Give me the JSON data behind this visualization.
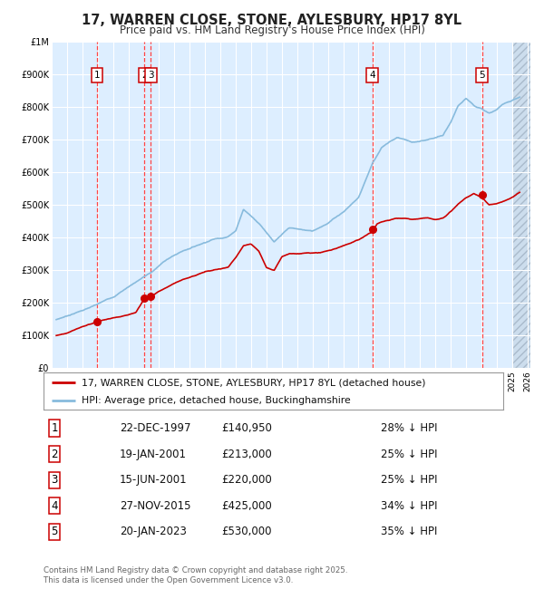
{
  "title": "17, WARREN CLOSE, STONE, AYLESBURY, HP17 8YL",
  "subtitle": "Price paid vs. HM Land Registry's House Price Index (HPI)",
  "plot_bg_color": "#ddeeff",
  "grid_color": "#ffffff",
  "ylim": [
    0,
    1000000
  ],
  "xlim_start": 1995.3,
  "xlim_end": 2026.2,
  "yticks": [
    0,
    100000,
    200000,
    300000,
    400000,
    500000,
    600000,
    700000,
    800000,
    900000,
    1000000
  ],
  "ytick_labels": [
    "£0",
    "£100K",
    "£200K",
    "£300K",
    "£400K",
    "£500K",
    "£600K",
    "£700K",
    "£800K",
    "£900K",
    "£1M"
  ],
  "xticks": [
    1995,
    1996,
    1997,
    1998,
    1999,
    2000,
    2001,
    2002,
    2003,
    2004,
    2005,
    2006,
    2007,
    2008,
    2009,
    2010,
    2011,
    2012,
    2013,
    2014,
    2015,
    2016,
    2017,
    2018,
    2019,
    2020,
    2021,
    2022,
    2023,
    2024,
    2025,
    2026
  ],
  "transactions": [
    {
      "id": 1,
      "date": "22-DEC-1997",
      "year": 1997.97,
      "price": 140950,
      "pct": "28%",
      "direction": "↓"
    },
    {
      "id": 2,
      "date": "19-JAN-2001",
      "year": 2001.05,
      "price": 213000,
      "pct": "25%",
      "direction": "↓"
    },
    {
      "id": 3,
      "date": "15-JUN-2001",
      "year": 2001.46,
      "price": 220000,
      "pct": "25%",
      "direction": "↓"
    },
    {
      "id": 4,
      "date": "27-NOV-2015",
      "year": 2015.9,
      "price": 425000,
      "pct": "34%",
      "direction": "↓"
    },
    {
      "id": 5,
      "date": "20-JAN-2023",
      "year": 2023.05,
      "price": 530000,
      "pct": "35%",
      "direction": "↓"
    }
  ],
  "vline_color": "#ff4444",
  "marker_color": "#cc0000",
  "red_line_color": "#cc0000",
  "blue_line_color": "#88bbdd",
  "legend_label_red": "17, WARREN CLOSE, STONE, AYLESBURY, HP17 8YL (detached house)",
  "legend_label_blue": "HPI: Average price, detached house, Buckinghamshire",
  "footer": "Contains HM Land Registry data © Crown copyright and database right 2025.\nThis data is licensed under the Open Government Licence v3.0.",
  "table_rows": [
    [
      1,
      "22-DEC-1997",
      "£140,950",
      "28% ↓ HPI"
    ],
    [
      2,
      "19-JAN-2001",
      "£213,000",
      "25% ↓ HPI"
    ],
    [
      3,
      "15-JUN-2001",
      "£220,000",
      "25% ↓ HPI"
    ],
    [
      4,
      "27-NOV-2015",
      "£425,000",
      "34% ↓ HPI"
    ],
    [
      5,
      "20-JAN-2023",
      "£530,000",
      "35% ↓ HPI"
    ]
  ],
  "hpi_anchors_x": [
    1995.3,
    1996.0,
    1997.0,
    1997.97,
    1999.0,
    2000.0,
    2001.0,
    2001.5,
    2002.5,
    2003.5,
    2004.5,
    2005.5,
    2006.5,
    2007.0,
    2007.5,
    2008.5,
    2009.5,
    2010.5,
    2011.0,
    2012.0,
    2013.0,
    2014.0,
    2015.0,
    2015.9,
    2016.5,
    2017.5,
    2018.0,
    2018.5,
    2019.5,
    2020.5,
    2021.0,
    2021.5,
    2022.0,
    2022.5,
    2023.0,
    2023.5,
    2024.0,
    2024.5,
    2025.5
  ],
  "hpi_anchors_y": [
    148000,
    160000,
    178000,
    195000,
    218000,
    250000,
    282000,
    295000,
    335000,
    360000,
    380000,
    400000,
    410000,
    430000,
    495000,
    455000,
    400000,
    440000,
    435000,
    428000,
    455000,
    490000,
    535000,
    640000,
    690000,
    720000,
    715000,
    705000,
    710000,
    720000,
    760000,
    810000,
    835000,
    815000,
    805000,
    790000,
    800000,
    820000,
    840000
  ],
  "red_anchors_x": [
    1995.3,
    1996.0,
    1997.0,
    1997.97,
    1998.5,
    1999.5,
    2000.5,
    2001.05,
    2001.46,
    2002.5,
    2003.5,
    2004.0,
    2005.0,
    2006.0,
    2006.5,
    2007.0,
    2007.5,
    2008.0,
    2008.5,
    2009.0,
    2009.5,
    2010.0,
    2010.5,
    2011.0,
    2011.5,
    2012.0,
    2012.5,
    2013.0,
    2013.5,
    2014.0,
    2014.5,
    2015.0,
    2015.9,
    2016.2,
    2016.5,
    2017.0,
    2017.5,
    2018.0,
    2018.5,
    2019.0,
    2019.5,
    2020.0,
    2020.5,
    2021.0,
    2021.5,
    2022.0,
    2022.5,
    2023.05,
    2023.5,
    2024.0,
    2024.5,
    2025.0,
    2025.5
  ],
  "red_anchors_y": [
    100000,
    107000,
    125000,
    140950,
    148000,
    157000,
    172000,
    213000,
    220000,
    245000,
    270000,
    278000,
    295000,
    303000,
    308000,
    340000,
    375000,
    380000,
    360000,
    310000,
    303000,
    345000,
    355000,
    355000,
    358000,
    358000,
    358000,
    365000,
    372000,
    382000,
    390000,
    400000,
    425000,
    450000,
    457000,
    463000,
    468000,
    468000,
    463000,
    466000,
    468000,
    462000,
    468000,
    488000,
    510000,
    528000,
    542000,
    530000,
    507000,
    510000,
    518000,
    528000,
    543000
  ]
}
